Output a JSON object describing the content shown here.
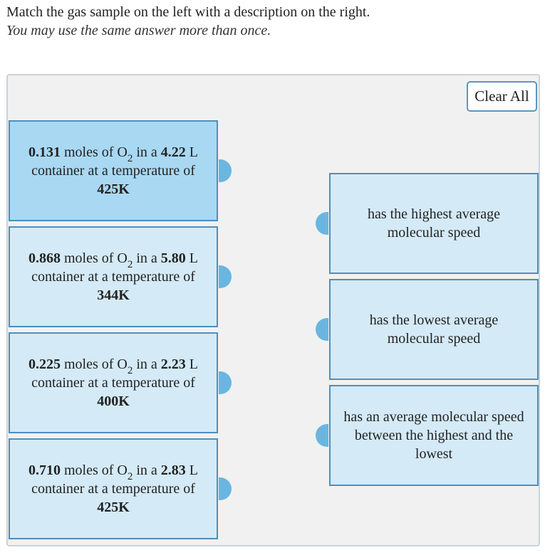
{
  "instructions": {
    "main": "Match the gas sample on the left with a description on the right.",
    "sub": "You may use the same answer more than once."
  },
  "clear_all_label": "Clear All",
  "samples": [
    {
      "moles": "0.131",
      "text_a": " moles of O",
      "subscript": "2",
      "text_b": " in a ",
      "volume": "4.22",
      "text_c": " L container at a temperature of ",
      "temperature": "425K",
      "selected": true
    },
    {
      "moles": "0.868",
      "text_a": " moles of O",
      "subscript": "2",
      "text_b": " in a ",
      "volume": "5.80",
      "text_c": " L container at a temperature of ",
      "temperature": "344K",
      "selected": false
    },
    {
      "moles": "0.225",
      "text_a": " moles of O",
      "subscript": "2",
      "text_b": " in a ",
      "volume": "2.23",
      "text_c": " L container at a temperature of ",
      "temperature": "400K",
      "selected": false
    },
    {
      "moles": "0.710",
      "text_a": " moles of O",
      "subscript": "2",
      "text_b": " in a ",
      "volume": "2.83",
      "text_c": " L container at a temperature of ",
      "temperature": "425K",
      "selected": false
    }
  ],
  "descriptions": [
    {
      "label": "has the highest average molecular speed"
    },
    {
      "label": "has the lowest average molecular speed"
    },
    {
      "label": "has an average molecular speed between the highest and the lowest"
    }
  ]
}
